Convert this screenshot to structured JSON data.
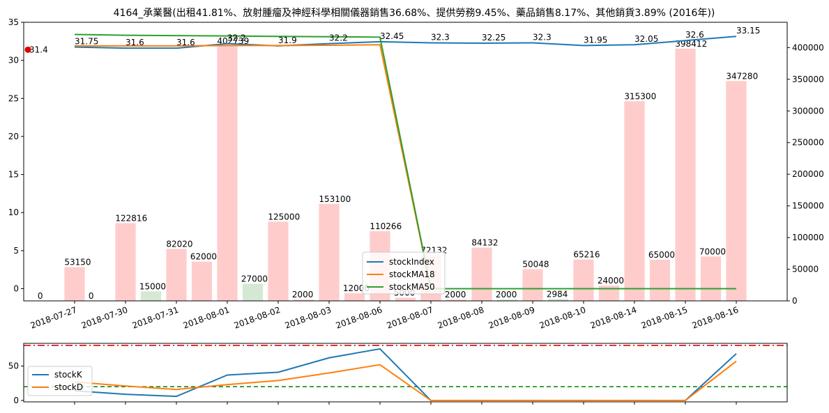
{
  "chart_data": [
    {
      "type": "bar+line",
      "title": "4164_承業醫(出租41.81%、放射腫瘤及神經科學相關儀器銷售36.68%、提供勞務9.45%、藥品銷售8.17%、其他銷貨3.89% (2016年))",
      "categories": [
        "2018-07-27",
        "2018-07-30",
        "2018-07-31",
        "2018-08-01",
        "2018-08-02",
        "2018-08-03",
        "2018-08-06",
        "2018-08-07",
        "2018-08-08",
        "2018-08-09",
        "2018-08-10",
        "2018-08-14",
        "2018-08-15",
        "2018-08-16"
      ],
      "ylim_left": [
        -1.6,
        35
      ],
      "yticks_left": [
        0,
        5,
        10,
        15,
        20,
        25,
        30,
        35
      ],
      "ylim_right": [
        0,
        440000
      ],
      "yticks_right": [
        0,
        50000,
        100000,
        150000,
        200000,
        250000,
        300000,
        350000,
        400000
      ],
      "volume_bars": {
        "values": [
          53150,
          122816,
          82020,
          402739,
          125000,
          153100,
          110266,
          72132,
          84132,
          50048,
          65216,
          315300,
          398412,
          347280
        ],
        "colors": [
          "#ffcccc",
          "#ffcccc",
          "#ffcccc",
          "#ffcccc",
          "#ffcccc",
          "#ffcccc",
          "#ffcccc",
          "#ffcccc",
          "#ffcccc",
          "#ffcccc",
          "#ffcccc",
          "#ffcccc",
          "#ffcccc",
          "#ffcccc"
        ]
      },
      "offset_bars": {
        "values": [
          0,
          0,
          15000,
          62000,
          27000,
          2000,
          12000,
          5000,
          2000,
          2000,
          2984,
          24000,
          65000,
          70000
        ],
        "colors": [
          "#ffcccc",
          "#ffcccc",
          "#d5e8d4",
          "#ffcccc",
          "#d5e8d4",
          "#ffcccc",
          "#ffcccc",
          "#ffcccc",
          "#ffcccc",
          "#d5e8d4",
          "#d5e8d4",
          "#ffcccc",
          "#ffcccc",
          "#ffcccc"
        ]
      },
      "marker": {
        "label": "31.4",
        "value": 31.4,
        "color": "#e00000"
      },
      "series": [
        {
          "name": "stockIndex",
          "color": "#1f77b4",
          "values": [
            31.75,
            31.6,
            31.6,
            32.2,
            31.9,
            32.2,
            32.45,
            32.3,
            32.25,
            32.3,
            31.95,
            32.05,
            32.6,
            33.15
          ]
        },
        {
          "name": "stockMA18",
          "color": "#ff7f0e",
          "values": [
            31.9,
            31.9,
            31.9,
            31.95,
            31.95,
            31.98,
            32.05,
            0,
            0,
            0,
            0,
            0,
            0,
            0
          ]
        },
        {
          "name": "stockMA50",
          "color": "#2ca02c",
          "values": [
            33.4,
            33.3,
            33.25,
            33.2,
            33.15,
            33.1,
            33.05,
            0,
            0,
            0,
            0,
            0,
            0,
            0
          ]
        }
      ],
      "price_labels": [
        "31.75",
        "31.6",
        "31.6",
        "32.2",
        "31.9",
        "32.2",
        "32.45",
        "32.3",
        "32.25",
        "32.3",
        "31.95",
        "32.05",
        "32.6",
        "33.15"
      ]
    },
    {
      "type": "line",
      "ylim": [
        -2,
        83
      ],
      "yticks": [
        0,
        50
      ],
      "series": [
        {
          "name": "stockK",
          "color": "#1f77b4",
          "values": [
            14,
            9,
            6,
            37,
            41,
            62,
            75,
            0,
            0,
            0,
            0,
            0,
            0,
            68
          ]
        },
        {
          "name": "stockD",
          "color": "#ff7f0e",
          "values": [
            27,
            21,
            16,
            23,
            29,
            40,
            52,
            0,
            0,
            0,
            0,
            0,
            0,
            57
          ]
        }
      ],
      "hlines": [
        {
          "value": 80,
          "color": "#e00000",
          "style": "dashdot"
        },
        {
          "value": 20,
          "color": "#008000",
          "style": "dashed"
        }
      ]
    }
  ]
}
